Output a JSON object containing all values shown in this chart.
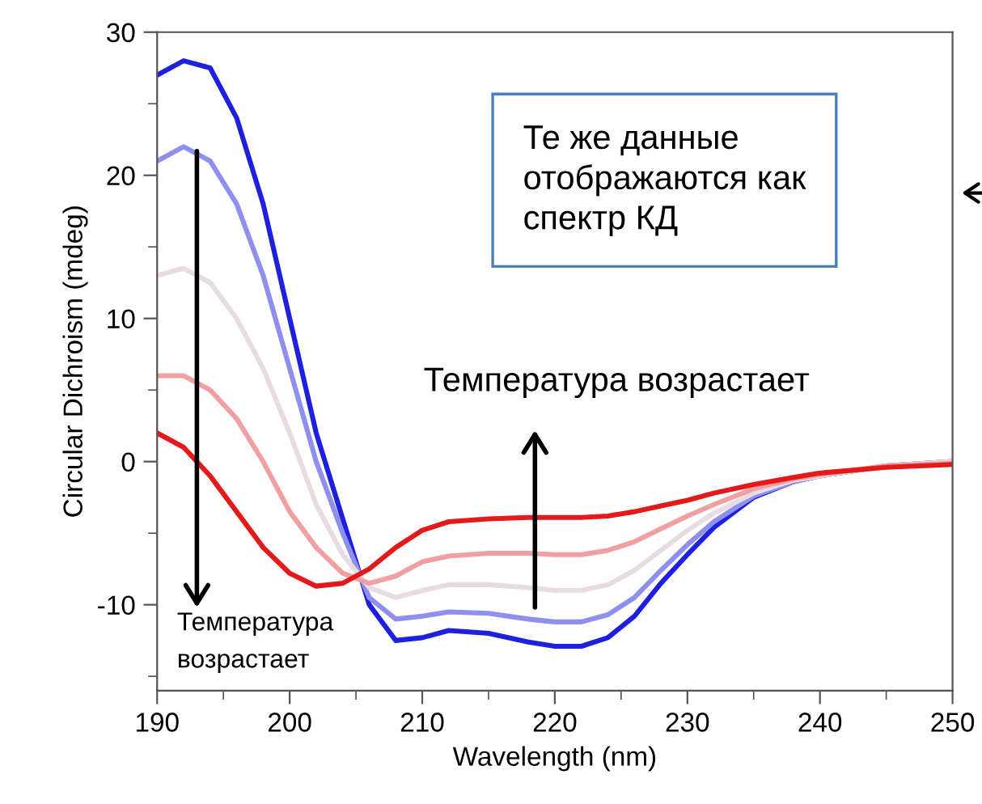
{
  "chart_data": {
    "type": "line",
    "xlabel": "Wavelength (nm)",
    "ylabel": "Circular Dichroism (mdeg)",
    "x": [
      190,
      192,
      194,
      196,
      198,
      200,
      202,
      204,
      206,
      208,
      210,
      212,
      215,
      218,
      220,
      222,
      224,
      226,
      228,
      230,
      232,
      235,
      238,
      240,
      245,
      250
    ],
    "series": [
      {
        "color": "#1f1fe0",
        "values": [
          27,
          28,
          27.5,
          24,
          18,
          10,
          2,
          -4,
          -10,
          -12.5,
          -12.3,
          -11.8,
          -12,
          -12.6,
          -12.9,
          -12.9,
          -12.3,
          -10.8,
          -8.5,
          -6.5,
          -4.6,
          -2.5,
          -1.4,
          -1,
          -0.3,
          0
        ]
      },
      {
        "color": "#8f8ff0",
        "values": [
          21,
          22,
          21,
          18,
          13,
          6.5,
          0,
          -5,
          -9.5,
          -11,
          -10.8,
          -10.5,
          -10.6,
          -11,
          -11.2,
          -11.2,
          -10.7,
          -9.5,
          -7.6,
          -5.8,
          -4.2,
          -2.4,
          -1.4,
          -1,
          -0.3,
          0
        ]
      },
      {
        "color": "#e8dce4",
        "values": [
          13,
          13.5,
          12.5,
          10,
          6.5,
          2,
          -3,
          -6.5,
          -8.8,
          -9.5,
          -9,
          -8.6,
          -8.6,
          -8.8,
          -9,
          -9,
          -8.6,
          -7.6,
          -6.2,
          -4.8,
          -3.6,
          -2.2,
          -1.3,
          -1,
          -0.3,
          0
        ]
      },
      {
        "color": "#f0a0a0",
        "values": [
          6,
          6,
          5,
          3,
          0,
          -3.5,
          -6,
          -7.8,
          -8.5,
          -8,
          -7,
          -6.6,
          -6.4,
          -6.4,
          -6.5,
          -6.5,
          -6.2,
          -5.6,
          -4.7,
          -3.8,
          -3,
          -1.9,
          -1.2,
          -0.9,
          -0.3,
          -0.1
        ]
      },
      {
        "color": "#e41a1a",
        "values": [
          2,
          1,
          -1,
          -3.5,
          -6,
          -7.8,
          -8.7,
          -8.5,
          -7.5,
          -6,
          -4.8,
          -4.2,
          -4,
          -3.9,
          -3.9,
          -3.9,
          -3.8,
          -3.5,
          -3.1,
          -2.7,
          -2.2,
          -1.6,
          -1.1,
          -0.8,
          -0.4,
          -0.2
        ]
      }
    ],
    "xlim": [
      190,
      250
    ],
    "ylim": [
      -16,
      30
    ],
    "xticks": [
      190,
      {
        "value": 195,
        "label": null
      },
      200,
      {
        "value": 205,
        "label": null
      },
      210,
      {
        "value": 215,
        "label": null
      },
      220,
      {
        "value": 225,
        "label": null
      },
      230,
      {
        "value": 235,
        "label": null
      },
      240,
      {
        "value": 245,
        "label": null
      },
      250
    ],
    "yticks": [
      {
        "value": -15,
        "label": null
      },
      -10,
      {
        "value": -5,
        "label": null
      },
      0,
      {
        "value": 5,
        "label": null
      },
      10,
      {
        "value": 15,
        "label": null
      },
      20,
      {
        "value": 25,
        "label": null
      },
      30
    ],
    "annotations": [
      "Те же данные\nотображаются как\nспектр КД",
      "Температура возрастает",
      "Температура\nвозрастает"
    ],
    "grid": false,
    "legend": false,
    "marker": "none",
    "line_style": "solid"
  }
}
